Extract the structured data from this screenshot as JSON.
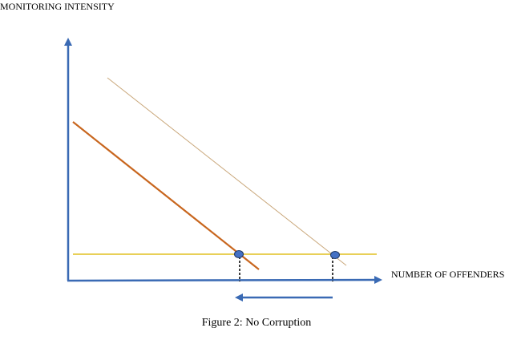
{
  "labels": {
    "y_axis": "MONITORING INTENSITY",
    "x_axis": "NUMBER OF OFFENDERS",
    "caption": "Figure 2: No Corruption"
  },
  "colors": {
    "axis": "#3a6ab4",
    "steep_line": "#c8661e",
    "shallow_line": "#c9a77a",
    "horizontal_line": "#e0c020",
    "point_fill": "#4471c4",
    "point_stroke": "#1f3864",
    "dashed_drop": "#000000",
    "shift_arrow": "#3a6ab4"
  },
  "elements": {
    "lines": [
      "downward-sloping-line-lower",
      "downward-sloping-line-upper",
      "horizontal-line"
    ],
    "points": [
      "equilibrium-point-left",
      "equilibrium-point-right"
    ],
    "shift_arrow_direction": "left"
  }
}
